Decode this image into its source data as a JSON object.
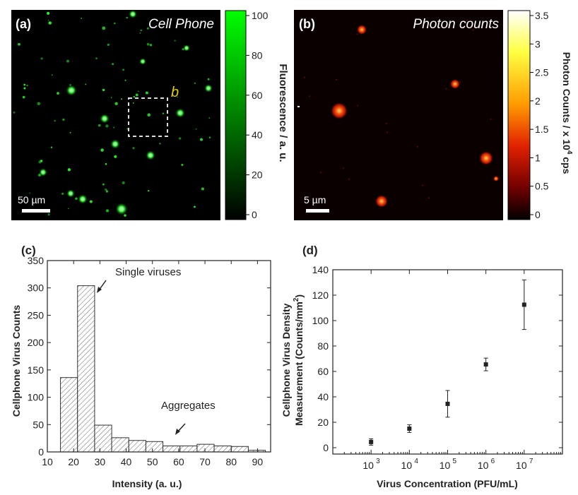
{
  "panel_a": {
    "label": "(a)",
    "title": "Cell Phone",
    "box_label": "b",
    "scale_label": "50 µm",
    "colorbar_label": "Fluorescence / a. u.",
    "colorbar_ticks": [
      "100",
      "80",
      "60",
      "40",
      "20",
      "0"
    ],
    "colors": {
      "background": "#000000",
      "spots": "#33ff33",
      "colorbar_top": "#00ff00",
      "box": "#dddddd",
      "box_label": "#e0d000"
    }
  },
  "panel_b": {
    "label": "(b)",
    "title": "Photon counts",
    "scale_label": "5 µm",
    "colorbar_label_prefix": "Photon Counts / x 10",
    "colorbar_label_exp": "4",
    "colorbar_label_suffix": " cps",
    "colorbar_ticks": [
      "3.5",
      "3",
      "2.5",
      "2",
      "1.5",
      "1",
      "0.5",
      "0"
    ],
    "colors": {
      "background": "#0a0000",
      "hot": "#ff3b1a",
      "colorbar": [
        "#ffffff",
        "#ffff40",
        "#ff9a00",
        "#e02000",
        "#700000",
        "#000000"
      ]
    }
  },
  "panel_c": {
    "label": "(c)",
    "annotation_single": "Single viruses",
    "annotation_aggregates": "Aggregates"
  },
  "panel_d": {
    "label": "(d)",
    "ylabel_line1": "Cellphone Virus Density",
    "ylabel_line2_prefix": "Measurement (Counts/mm",
    "ylabel_line2_exp": "2",
    "ylabel_line2_suffix": ")",
    "tick_base": "10"
  },
  "chart_data": [
    {
      "type": "bar",
      "panel": "c",
      "xlabel": "Intensity (a. u.)",
      "ylabel": "Cellphone Virus Counts",
      "xlim": [
        10,
        95
      ],
      "ylim": [
        0,
        350
      ],
      "bin_width": 6.5,
      "x_ticks": [
        10,
        20,
        30,
        40,
        50,
        60,
        70,
        80,
        90
      ],
      "y_ticks": [
        0,
        50,
        100,
        150,
        200,
        250,
        300,
        350
      ],
      "bin_starts": [
        15,
        21.5,
        28,
        34.5,
        41,
        47.5,
        54,
        60.5,
        67,
        73.5,
        80,
        86.5
      ],
      "values": [
        136,
        304,
        49,
        26,
        21,
        19,
        11,
        11,
        14,
        11,
        10,
        3
      ],
      "grid": false
    },
    {
      "type": "scatter",
      "panel": "d",
      "xlabel": "Virus Concentration (PFU/mL)",
      "x_scale": "log",
      "xlim": [
        100,
        100000000
      ],
      "ylim": [
        -5,
        140
      ],
      "x_ticks": [
        1000,
        10000,
        100000,
        1000000,
        10000000
      ],
      "x_tick_exponents": [
        "3",
        "4",
        "5",
        "6",
        "7"
      ],
      "y_ticks": [
        0,
        20,
        40,
        60,
        80,
        100,
        120,
        140
      ],
      "x": [
        1000,
        10000,
        100000,
        1000000,
        10000000
      ],
      "y": [
        4.5,
        15,
        34.5,
        65.5,
        112.5
      ],
      "error": [
        2.5,
        3,
        10.5,
        5,
        19.5
      ],
      "grid": false
    }
  ]
}
